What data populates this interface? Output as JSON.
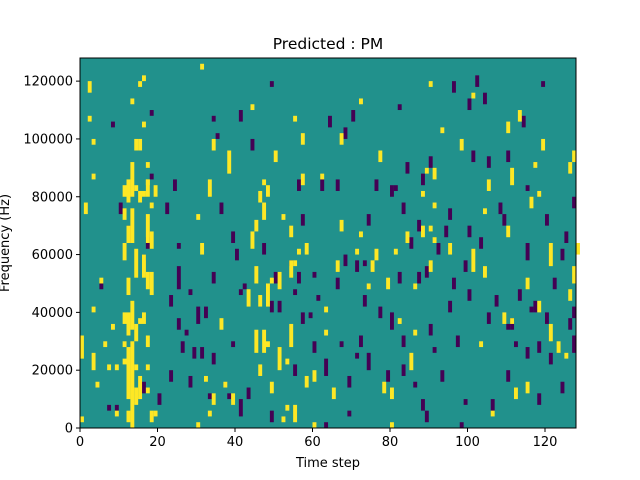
{
  "chart_data": {
    "type": "heatmap",
    "title": "Predicted : PM",
    "xlabel": "Time step",
    "ylabel": "Frequency (Hz)",
    "xlim": [
      0,
      128
    ],
    "ylim": [
      0,
      128000
    ],
    "x_ticks": [
      0,
      20,
      40,
      60,
      80,
      100,
      120
    ],
    "x_tick_labels": [
      "0",
      "20",
      "40",
      "60",
      "80",
      "100",
      "120"
    ],
    "y_ticks": [
      0,
      20000,
      40000,
      60000,
      80000,
      100000,
      120000
    ],
    "y_tick_labels": [
      "0",
      "20000",
      "40000",
      "60000",
      "80000",
      "100000",
      "120000"
    ],
    "n_time_steps": 128,
    "n_freq_bins": 64,
    "freq_bin_hz": 2000,
    "colors": {
      "background": "#21918c",
      "high": "#fde725",
      "low": "#440154"
    },
    "cells_high": [
      [
        0,
        1,
        2
      ],
      [
        0,
        12,
        16
      ],
      [
        3,
        10,
        13
      ],
      [
        1,
        37,
        39
      ],
      [
        3,
        43,
        44
      ],
      [
        3,
        20,
        21
      ],
      [
        2,
        53,
        54
      ],
      [
        2,
        58,
        60
      ],
      [
        3,
        49,
        50
      ],
      [
        5,
        25,
        26
      ],
      [
        4,
        7,
        8
      ],
      [
        6,
        14,
        15
      ],
      [
        7,
        10,
        11
      ],
      [
        8,
        17,
        18
      ],
      [
        9,
        2,
        3
      ],
      [
        9,
        10,
        11
      ],
      [
        11,
        11,
        12
      ],
      [
        11,
        14,
        15
      ],
      [
        11,
        18,
        20
      ],
      [
        11,
        29,
        32
      ],
      [
        11,
        36,
        38
      ],
      [
        11,
        40,
        42
      ],
      [
        12,
        1,
        3
      ],
      [
        12,
        5,
        14
      ],
      [
        12,
        16,
        20
      ],
      [
        12,
        23,
        26
      ],
      [
        12,
        32,
        35
      ],
      [
        12,
        39,
        43
      ],
      [
        13,
        0,
        15
      ],
      [
        13,
        17,
        22
      ],
      [
        13,
        32,
        38
      ],
      [
        13,
        40,
        46
      ],
      [
        13,
        56,
        57
      ],
      [
        14,
        4,
        7
      ],
      [
        14,
        10,
        11
      ],
      [
        14,
        15,
        18
      ],
      [
        14,
        26,
        31
      ],
      [
        14,
        41,
        42
      ],
      [
        14,
        48,
        50
      ],
      [
        15,
        5,
        9
      ],
      [
        15,
        18,
        19
      ],
      [
        15,
        39,
        41
      ],
      [
        15,
        48,
        50
      ],
      [
        15,
        59,
        60
      ],
      [
        16,
        18,
        20
      ],
      [
        16,
        26,
        30
      ],
      [
        16,
        40,
        41
      ],
      [
        16,
        52,
        53
      ],
      [
        16,
        60,
        61
      ],
      [
        17,
        32,
        37
      ],
      [
        17,
        42,
        43
      ],
      [
        17,
        6,
        7
      ],
      [
        17,
        10,
        11
      ],
      [
        17,
        14,
        16
      ],
      [
        17,
        24,
        27
      ],
      [
        17,
        40,
        43
      ],
      [
        17,
        45,
        46
      ],
      [
        18,
        1,
        3
      ],
      [
        18,
        23,
        27
      ],
      [
        18,
        31,
        34
      ],
      [
        18,
        38,
        39
      ],
      [
        19,
        2,
        3
      ],
      [
        19,
        40,
        42
      ],
      [
        30,
        0,
        1
      ],
      [
        30,
        36,
        37
      ],
      [
        31,
        30,
        32
      ],
      [
        31,
        62,
        63
      ],
      [
        32,
        8,
        9
      ],
      [
        33,
        2,
        3
      ],
      [
        33,
        40,
        43
      ],
      [
        34,
        4,
        6
      ],
      [
        34,
        48,
        50
      ],
      [
        36,
        17,
        19
      ],
      [
        37,
        7,
        8
      ],
      [
        38,
        44,
        48
      ],
      [
        39,
        4,
        6
      ],
      [
        43,
        21,
        24
      ],
      [
        44,
        31,
        34
      ],
      [
        44,
        55,
        56
      ],
      [
        45,
        13,
        17
      ],
      [
        45,
        25,
        28
      ],
      [
        45,
        34,
        36
      ],
      [
        46,
        9,
        11
      ],
      [
        46,
        21,
        23
      ],
      [
        46,
        39,
        41
      ],
      [
        47,
        13,
        17
      ],
      [
        47,
        36,
        39
      ],
      [
        47,
        42,
        43
      ],
      [
        48,
        14,
        15
      ],
      [
        48,
        21,
        25
      ],
      [
        48,
        40,
        42
      ],
      [
        49,
        6,
        8
      ],
      [
        49,
        25,
        26
      ],
      [
        50,
        46,
        48
      ],
      [
        51,
        10,
        14
      ],
      [
        51,
        24,
        27
      ],
      [
        52,
        1,
        2
      ],
      [
        52,
        36,
        37
      ],
      [
        53,
        3,
        4
      ],
      [
        53,
        11,
        12
      ],
      [
        54,
        14,
        18
      ],
      [
        54,
        26,
        29
      ],
      [
        54,
        33,
        35
      ],
      [
        55,
        1,
        4
      ],
      [
        55,
        28,
        29
      ],
      [
        55,
        53,
        54
      ],
      [
        56,
        30,
        31
      ],
      [
        57,
        42,
        44
      ],
      [
        57,
        49,
        51
      ],
      [
        58,
        7,
        9
      ],
      [
        58,
        30,
        32
      ],
      [
        60,
        8,
        10
      ],
      [
        60,
        0,
        1
      ],
      [
        62,
        43,
        44
      ],
      [
        63,
        20,
        21
      ],
      [
        63,
        16,
        17
      ],
      [
        65,
        5,
        7
      ],
      [
        66,
        27,
        29
      ],
      [
        67,
        34,
        36
      ],
      [
        67,
        49,
        51
      ],
      [
        71,
        30,
        31
      ],
      [
        72,
        56,
        57
      ],
      [
        72,
        33,
        34
      ],
      [
        74,
        24,
        25
      ],
      [
        75,
        27,
        29
      ],
      [
        76,
        29,
        31
      ],
      [
        77,
        46,
        48
      ],
      [
        78,
        6,
        8
      ],
      [
        79,
        24,
        26
      ],
      [
        80,
        5,
        7
      ],
      [
        80,
        0,
        1
      ],
      [
        81,
        30,
        31
      ],
      [
        82,
        18,
        19
      ],
      [
        84,
        32,
        34
      ],
      [
        85,
        10,
        13
      ],
      [
        86,
        16,
        17
      ],
      [
        86,
        24,
        25
      ],
      [
        88,
        33,
        35
      ],
      [
        88,
        40,
        41
      ],
      [
        89,
        44,
        45
      ],
      [
        90,
        27,
        29
      ],
      [
        90,
        34,
        35
      ],
      [
        90,
        59,
        60
      ],
      [
        91,
        32,
        33
      ],
      [
        91,
        38,
        39
      ],
      [
        91,
        43,
        45
      ],
      [
        93,
        51,
        52
      ],
      [
        95,
        30,
        32
      ],
      [
        98,
        48,
        50
      ],
      [
        101,
        27,
        31
      ],
      [
        101,
        57,
        58
      ],
      [
        103,
        14,
        15
      ],
      [
        104,
        26,
        28
      ],
      [
        104,
        37,
        38
      ],
      [
        105,
        41,
        43
      ],
      [
        106,
        2,
        3
      ],
      [
        109,
        18,
        20
      ],
      [
        110,
        33,
        35
      ],
      [
        110,
        51,
        53
      ],
      [
        111,
        18,
        19
      ],
      [
        111,
        42,
        45
      ],
      [
        112,
        5,
        7
      ],
      [
        113,
        53,
        55
      ],
      [
        115,
        6,
        8
      ],
      [
        115,
        24,
        26
      ],
      [
        116,
        38,
        40
      ],
      [
        117,
        45,
        46
      ],
      [
        118,
        40,
        41
      ],
      [
        118,
        20,
        22
      ],
      [
        119,
        48,
        50
      ],
      [
        121,
        15,
        18
      ],
      [
        121,
        28,
        32
      ],
      [
        123,
        13,
        15
      ],
      [
        125,
        12,
        13
      ],
      [
        126,
        22,
        24
      ],
      [
        126,
        44,
        46
      ],
      [
        127,
        25,
        28
      ],
      [
        127,
        46,
        48
      ],
      [
        128,
        30,
        32
      ]
    ],
    "cells_low": [
      [
        5,
        24,
        25
      ],
      [
        7,
        3,
        4
      ],
      [
        8,
        52,
        53
      ],
      [
        9,
        3,
        4
      ],
      [
        10,
        37,
        39
      ],
      [
        12,
        32,
        35
      ],
      [
        16,
        29,
        30
      ],
      [
        16,
        6,
        8
      ],
      [
        17,
        31,
        33
      ],
      [
        18,
        43,
        44
      ],
      [
        18,
        54,
        55
      ],
      [
        20,
        4,
        6
      ],
      [
        22,
        37,
        39
      ],
      [
        23,
        21,
        23
      ],
      [
        23,
        8,
        10
      ],
      [
        24,
        41,
        43
      ],
      [
        25,
        17,
        19
      ],
      [
        25,
        31,
        32
      ],
      [
        25,
        24,
        28
      ],
      [
        26,
        13,
        15
      ],
      [
        27,
        16,
        17
      ],
      [
        28,
        7,
        9
      ],
      [
        28,
        23,
        24
      ],
      [
        29,
        12,
        14
      ],
      [
        30,
        18,
        21
      ],
      [
        31,
        12,
        14
      ],
      [
        32,
        19,
        21
      ],
      [
        33,
        5,
        6
      ],
      [
        34,
        11,
        13
      ],
      [
        34,
        25,
        27
      ],
      [
        34,
        53,
        54
      ],
      [
        35,
        50,
        51
      ],
      [
        36,
        37,
        39
      ],
      [
        38,
        5,
        6
      ],
      [
        39,
        14,
        15
      ],
      [
        39,
        32,
        34
      ],
      [
        40,
        29,
        31
      ],
      [
        41,
        2,
        5
      ],
      [
        41,
        23,
        24
      ],
      [
        41,
        53,
        55
      ],
      [
        42,
        24,
        25
      ],
      [
        43,
        5,
        7
      ],
      [
        44,
        48,
        50
      ],
      [
        47,
        30,
        32
      ],
      [
        49,
        1,
        3
      ],
      [
        49,
        20,
        22
      ],
      [
        49,
        59,
        60
      ],
      [
        50,
        25,
        27
      ],
      [
        51,
        20,
        22
      ],
      [
        54,
        28,
        29
      ],
      [
        55,
        9,
        11
      ],
      [
        55,
        23,
        24
      ],
      [
        56,
        41,
        43
      ],
      [
        56,
        25,
        27
      ],
      [
        57,
        35,
        37
      ],
      [
        57,
        18,
        20
      ],
      [
        59,
        19,
        20
      ],
      [
        60,
        13,
        15
      ],
      [
        60,
        26,
        27
      ],
      [
        61,
        22,
        23
      ],
      [
        62,
        41,
        43
      ],
      [
        63,
        9,
        12
      ],
      [
        63,
        0,
        1
      ],
      [
        64,
        52,
        54
      ],
      [
        66,
        24,
        26
      ],
      [
        67,
        14,
        15
      ],
      [
        68,
        28,
        30
      ],
      [
        68,
        50,
        52
      ],
      [
        69,
        7,
        9
      ],
      [
        69,
        2,
        3
      ],
      [
        70,
        53,
        55
      ],
      [
        71,
        12,
        13
      ],
      [
        71,
        27,
        29
      ],
      [
        72,
        14,
        16
      ],
      [
        73,
        21,
        23
      ],
      [
        73,
        28,
        29
      ],
      [
        74,
        35,
        37
      ],
      [
        74,
        10,
        13
      ],
      [
        79,
        8,
        10
      ],
      [
        80,
        17,
        20
      ],
      [
        80,
        40,
        42
      ],
      [
        81,
        41,
        42
      ],
      [
        82,
        25,
        27
      ],
      [
        82,
        55,
        56
      ],
      [
        83,
        9,
        11
      ],
      [
        83,
        14,
        16
      ],
      [
        83,
        37,
        39
      ],
      [
        84,
        44,
        46
      ],
      [
        85,
        31,
        33
      ],
      [
        86,
        7,
        8
      ],
      [
        87,
        34,
        36
      ],
      [
        87,
        25,
        27
      ],
      [
        88,
        3,
        5
      ],
      [
        88,
        42,
        44
      ],
      [
        89,
        1,
        3
      ],
      [
        89,
        26,
        28
      ],
      [
        90,
        16,
        18
      ],
      [
        90,
        45,
        47
      ],
      [
        91,
        13,
        14
      ],
      [
        92,
        30,
        32
      ],
      [
        93,
        8,
        10
      ],
      [
        94,
        33,
        35
      ],
      [
        95,
        20,
        22
      ],
      [
        95,
        36,
        38
      ],
      [
        96,
        24,
        26
      ],
      [
        97,
        14,
        16
      ],
      [
        98,
        0,
        1
      ],
      [
        99,
        4,
        5
      ],
      [
        99,
        27,
        29
      ],
      [
        100,
        22,
        24
      ],
      [
        100,
        55,
        57
      ],
      [
        101,
        46,
        48
      ],
      [
        102,
        59,
        61
      ],
      [
        103,
        31,
        33
      ],
      [
        104,
        56,
        58
      ],
      [
        105,
        45,
        47
      ],
      [
        105,
        18,
        20
      ],
      [
        106,
        3,
        5
      ],
      [
        107,
        21,
        23
      ],
      [
        108,
        37,
        39
      ],
      [
        109,
        35,
        37
      ],
      [
        110,
        46,
        48
      ],
      [
        110,
        8,
        10
      ],
      [
        110,
        17,
        18
      ],
      [
        111,
        17,
        19
      ],
      [
        112,
        14,
        15
      ],
      [
        113,
        22,
        24
      ],
      [
        114,
        52,
        54
      ],
      [
        115,
        29,
        32
      ],
      [
        115,
        12,
        14
      ],
      [
        115,
        41,
        42
      ],
      [
        116,
        20,
        21
      ],
      [
        117,
        20,
        22
      ],
      [
        118,
        4,
        6
      ],
      [
        118,
        13,
        15
      ],
      [
        120,
        18,
        20
      ],
      [
        120,
        35,
        37
      ],
      [
        121,
        11,
        13
      ],
      [
        122,
        24,
        26
      ],
      [
        124,
        29,
        31
      ],
      [
        125,
        32,
        34
      ],
      [
        126,
        17,
        19
      ],
      [
        127,
        19,
        21
      ],
      [
        127,
        13,
        16
      ],
      [
        127,
        38,
        40
      ],
      [
        124,
        6,
        8
      ],
      [
        119,
        59,
        60
      ],
      [
        100,
        33,
        35
      ],
      [
        96,
        58,
        60
      ],
      [
        76,
        41,
        43
      ],
      [
        77,
        19,
        21
      ],
      [
        66,
        41,
        43
      ]
    ]
  }
}
